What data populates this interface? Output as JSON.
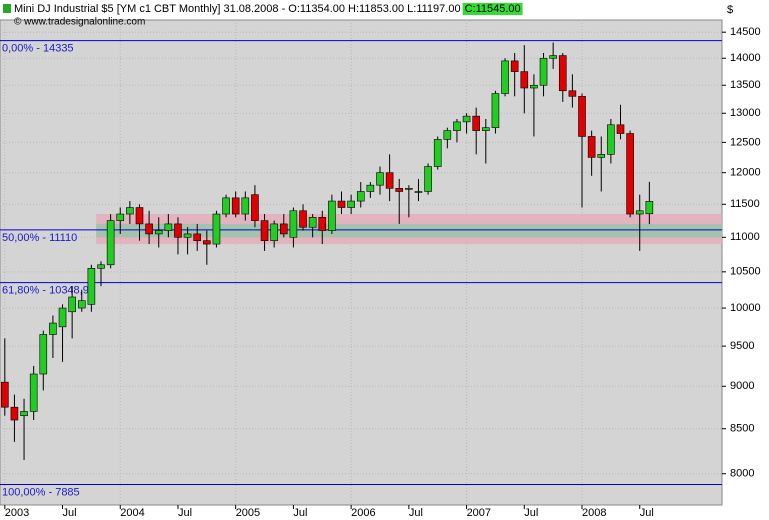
{
  "chart_data": {
    "type": "candlestick",
    "title": "Mini DJ Industrial $5 [YM c1 CBT  Monthly] 31.08.2008 - O:11354.00 H:11853.00 L:11197.00",
    "close_label": "C:11545.00",
    "source": "© www.tradesignalonline.com",
    "unit": "$",
    "categories": [
      "2003",
      null,
      null,
      null,
      null,
      null,
      "Jul",
      null,
      null,
      null,
      null,
      null,
      "2004",
      null,
      null,
      null,
      null,
      null,
      "Jul",
      null,
      null,
      null,
      null,
      null,
      "2005",
      null,
      null,
      null,
      null,
      null,
      "Jul",
      null,
      null,
      null,
      null,
      null,
      "2006",
      null,
      null,
      null,
      null,
      null,
      "Jul",
      null,
      null,
      null,
      null,
      null,
      "2007",
      null,
      null,
      null,
      null,
      null,
      "Jul",
      null,
      null,
      null,
      null,
      null,
      "2008",
      null,
      null,
      null,
      null,
      null,
      "Jul",
      null
    ],
    "series": [
      {
        "open": [
          9050,
          8750,
          8650,
          8700,
          9150,
          9650,
          9750,
          9950,
          10000,
          10050,
          10550,
          10600,
          11250,
          11350,
          11450,
          11200,
          11050,
          11100,
          11200,
          11000,
          11050,
          10950,
          10900,
          11350,
          11600,
          11350,
          11650,
          11250,
          10950,
          11200,
          11000,
          11400,
          11150,
          11300,
          11100,
          11550,
          11450,
          11550,
          11700,
          11800,
          12000,
          11750,
          11750,
          11700,
          11700,
          12100,
          12550,
          12700,
          12850,
          12950,
          12700,
          12750,
          13350,
          13950,
          13750,
          13450,
          13500,
          14000,
          14050,
          13400,
          13300,
          12600,
          12250,
          12300,
          12800,
          12650,
          11350,
          11354
        ],
        "high": [
          9600,
          8900,
          8850,
          9250,
          9700,
          9900,
          10050,
          10300,
          10250,
          10600,
          10650,
          11350,
          11450,
          11550,
          11500,
          11400,
          11300,
          11350,
          11300,
          11150,
          11200,
          11100,
          11400,
          11650,
          11700,
          11700,
          11800,
          11350,
          11250,
          11350,
          11450,
          11500,
          11350,
          11400,
          11650,
          11700,
          11650,
          11850,
          11850,
          12100,
          12300,
          11900,
          11800,
          11900,
          12150,
          12600,
          12750,
          12900,
          13000,
          13100,
          12900,
          13400,
          14000,
          14100,
          14250,
          13700,
          14100,
          14300,
          14100,
          13700,
          13350,
          12700,
          12600,
          12900,
          13150,
          12700,
          11650,
          11853
        ],
        "low": [
          8650,
          8350,
          8150,
          8600,
          8950,
          9350,
          9300,
          9600,
          9950,
          9950,
          10300,
          10550,
          11050,
          11200,
          10950,
          10900,
          10850,
          11000,
          10750,
          10750,
          10800,
          10600,
          10850,
          11300,
          11300,
          11250,
          11150,
          10800,
          10850,
          11000,
          10850,
          11100,
          11000,
          10900,
          11050,
          11350,
          11350,
          11450,
          11600,
          11650,
          11550,
          11200,
          11300,
          11550,
          11650,
          12050,
          12400,
          12500,
          12650,
          12300,
          12150,
          12650,
          13300,
          13300,
          13000,
          12600,
          13300,
          13800,
          13200,
          13100,
          11450,
          11950,
          11700,
          12150,
          12550,
          11300,
          10800,
          11197
        ],
        "close": [
          8750,
          8600,
          8700,
          9150,
          9650,
          9800,
          10000,
          10150,
          10100,
          10550,
          10600,
          11250,
          11350,
          11450,
          11200,
          11050,
          11100,
          11200,
          11000,
          11050,
          10950,
          10900,
          11350,
          11600,
          11350,
          11600,
          11250,
          10950,
          11200,
          11050,
          11400,
          11150,
          11300,
          11100,
          11550,
          11450,
          11550,
          11700,
          11800,
          12000,
          11750,
          11700,
          11750,
          11700,
          12100,
          12550,
          12700,
          12850,
          12950,
          12700,
          12750,
          13350,
          13950,
          13750,
          13450,
          13500,
          14000,
          14050,
          13400,
          13300,
          12600,
          12250,
          12300,
          12800,
          12650,
          11350,
          11400,
          11545
        ],
        "up_color": "#22cc22",
        "down_color": "#e00000"
      }
    ],
    "fib_levels": [
      {
        "value": 14335,
        "label": "0,00% - 14335"
      },
      {
        "value": 11110,
        "label": "50,00% - 11110"
      },
      {
        "value": 10348.9,
        "label": "61,80% - 10348,9"
      },
      {
        "value": 7885,
        "label": "100,00% - 7885"
      }
    ],
    "zones": [
      {
        "range": [
          10900,
          11350
        ],
        "color": "#e8a8b8",
        "start": 10
      },
      {
        "range": [
          11000,
          11200
        ],
        "color": "#8fc8a8",
        "start": 10
      }
    ],
    "ylim": [
      7670,
      14740
    ],
    "log_scale": true,
    "yticks": [
      8000,
      8500,
      9000,
      9500,
      10000,
      10500,
      11000,
      11500,
      12000,
      12500,
      13000,
      13500,
      14000,
      14500
    ],
    "grid": true,
    "background": "#d4d4d4"
  }
}
